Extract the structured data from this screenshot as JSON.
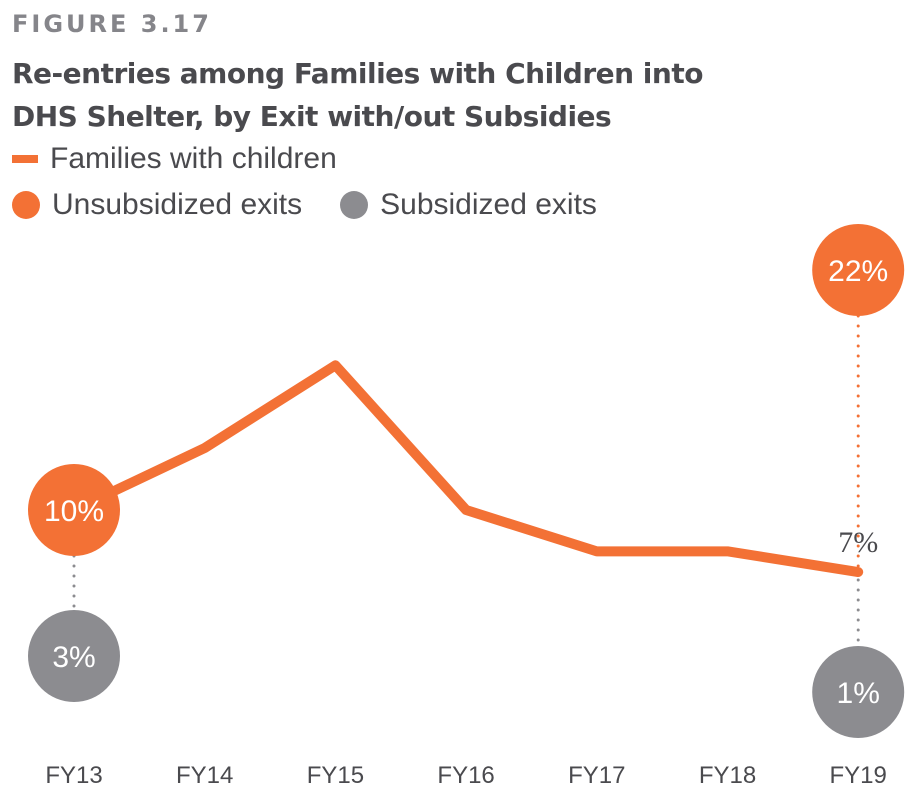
{
  "figure_label": "FIGURE 3.17",
  "title_line1": "Re-entries among Families with Children into",
  "title_line2": "DHS Shelter, by Exit with/out Subsidies",
  "legend": {
    "line_label": "Families with children",
    "unsubsidized_label": "Unsubsidized exits",
    "subsidized_label": "Subsidized exits"
  },
  "colors": {
    "orange": "#f37135",
    "gray": "#8c8c90",
    "text": "#4a4a4e",
    "label_gray": "#85858a"
  },
  "chart_data": {
    "type": "line",
    "title": "Re-entries among Families with Children into DHS Shelter, by Exit with/out Subsidies",
    "categories": [
      "FY13",
      "FY14",
      "FY15",
      "FY16",
      "FY17",
      "FY18",
      "FY19"
    ],
    "series": [
      {
        "name": "Families with children",
        "values": [
          10,
          13,
          17,
          10,
          8,
          8,
          7
        ]
      }
    ],
    "annotations": [
      {
        "category": "FY13",
        "series": "Unsubsidized exits",
        "value": 10,
        "label": "10%"
      },
      {
        "category": "FY13",
        "series": "Subsidized exits",
        "value": 3,
        "label": "3%"
      },
      {
        "category": "FY19",
        "series": "Unsubsidized exits",
        "value": 22,
        "label": "22%"
      },
      {
        "category": "FY19",
        "series": "Families with children",
        "value": 7,
        "label": "7%"
      },
      {
        "category": "FY19",
        "series": "Subsidized exits",
        "value": 1,
        "label": "1%"
      }
    ],
    "xlabel": "",
    "ylabel": "",
    "grid": false,
    "legend_position": "top-left"
  }
}
